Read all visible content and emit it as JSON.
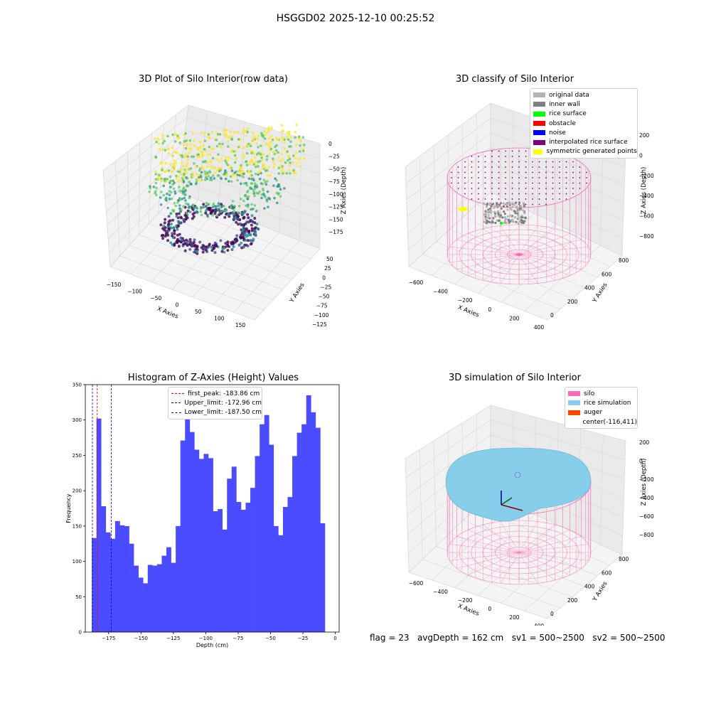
{
  "suptitle": "HSGGD02 2025-12-10 00:25:52",
  "footer": {
    "flag": "flag = 23",
    "avg_depth": "avgDepth = 162 cm",
    "sv1": "sv1 = 500~2500",
    "sv2": "sv2 = 500~2500"
  },
  "chart_data": [
    {
      "type": "scatter",
      "title": "3D Plot of Silo Interior(row data)",
      "xlabel": "X Axies",
      "ylabel": "Y Axies",
      "zlabel": "Z Axies (Depth)",
      "x_ticks": [
        "−150",
        "−100",
        "−50",
        "0",
        "50",
        "100",
        "150"
      ],
      "y_ticks": [
        "−125",
        "−100",
        "−75",
        "−50",
        "−25",
        "0",
        "25",
        "50"
      ],
      "z_ticks": [
        "−175",
        "−150",
        "−125",
        "−100",
        "−75",
        "−50",
        "−25",
        "0"
      ],
      "xlim": [
        -165,
        160
      ],
      "ylim": [
        -135,
        60
      ],
      "zlim": [
        -190,
        5
      ],
      "colormap": [
        "#440154",
        "#3b528b",
        "#21918c",
        "#5ec962",
        "#fde725"
      ]
    },
    {
      "type": "scatter",
      "title": "3D classify of Silo Interior",
      "xlabel": "X Axies",
      "ylabel": "Y Axies",
      "zlabel": "Z Axies (Depth)",
      "x_ticks": [
        "−600",
        "−400",
        "−200",
        "0",
        "200",
        "400"
      ],
      "y_ticks": [
        "0",
        "200",
        "400",
        "600",
        "800"
      ],
      "z_ticks": [
        "−800",
        "−600",
        "−400",
        "−200",
        "0",
        "200"
      ],
      "legend": [
        {
          "label": "original data",
          "color": "#b3b3b3"
        },
        {
          "label": "inner wall",
          "color": "#808080"
        },
        {
          "label": "rice surface",
          "color": "#00ff00"
        },
        {
          "label": "obstacle",
          "color": "#ff0000"
        },
        {
          "label": "noise",
          "color": "#0000ff"
        },
        {
          "label": "interpolated rice surface",
          "color": "#800080"
        },
        {
          "label": "symmetric generated points",
          "color": "#ffff00"
        }
      ],
      "wire_color": "#ff69b4"
    },
    {
      "type": "bar",
      "title": "Histogram of Z-Axies (Height) Values",
      "xlabel": "Depth (cm)",
      "ylabel": "Frequency",
      "xlim": [
        -193,
        3
      ],
      "ylim": [
        0,
        350
      ],
      "x_ticks": [
        -175,
        -150,
        -125,
        -100,
        -75,
        -50,
        -25,
        0
      ],
      "x_tick_labels": [
        "−175",
        "−150",
        "−125",
        "−100",
        "−75",
        "−50",
        "−25",
        "0"
      ],
      "y_ticks": [
        0,
        50,
        100,
        150,
        200,
        250,
        300,
        350
      ],
      "bin_start": -188,
      "bin_width": 3.6,
      "values": [
        133,
        302,
        178,
        141,
        132,
        157,
        151,
        150,
        125,
        94,
        77,
        69,
        95,
        94,
        96,
        108,
        120,
        98,
        150,
        271,
        335,
        283,
        258,
        245,
        252,
        246,
        171,
        174,
        145,
        217,
        234,
        184,
        173,
        183,
        204,
        249,
        294,
        307,
        265,
        150,
        137,
        177,
        191,
        249,
        282,
        294,
        335,
        311,
        289,
        154
      ],
      "bar_color": "#4b4bff",
      "lines": [
        {
          "label": "first_peak: -183.86 cm",
          "x": -183.86,
          "color": "#ff0000"
        },
        {
          "label": "Upper_limit: -172.96 cm",
          "x": -172.96,
          "color": "#0000cc"
        },
        {
          "label": "Lower_limit: -187.50 cm",
          "x": -187.5,
          "color": "#0000cc"
        }
      ]
    },
    {
      "type": "scatter",
      "title": "3D simulation of Silo Interior",
      "xlabel": "X Axies",
      "ylabel": "Y Axies",
      "zlabel": "Z Axies (Depth)",
      "x_ticks": [
        "−600",
        "−400",
        "−200",
        "0",
        "200",
        "400"
      ],
      "y_ticks": [
        "0",
        "200",
        "400",
        "600",
        "800"
      ],
      "z_ticks": [
        "−800",
        "−600",
        "−400",
        "−200",
        "0",
        "200"
      ],
      "legend": [
        {
          "label": "silo",
          "color": "#ff69b4"
        },
        {
          "label": "rice simulation",
          "color": "#87ceeb"
        },
        {
          "label": "auger",
          "color": "#ff4500"
        },
        {
          "label": "center(-116,411)",
          "color": ""
        }
      ],
      "wire_color": "#ff69b4",
      "surface_color": "#87ceeb"
    }
  ]
}
